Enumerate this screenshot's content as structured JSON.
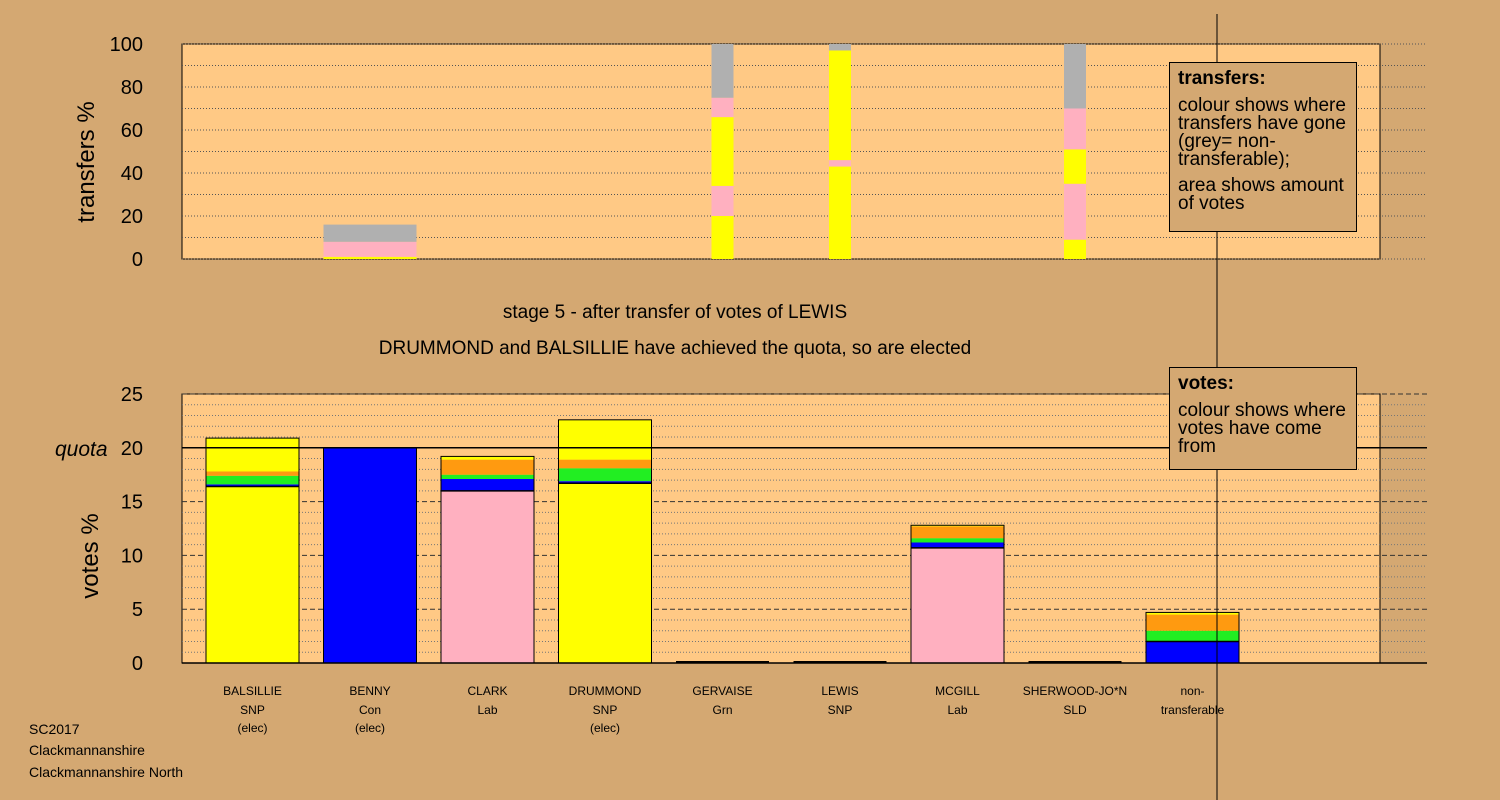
{
  "stage_text": "stage 5 - after transfer of votes of LEWIS",
  "elected_text": "DRUMMOND and BALSILLIE have achieved the quota, so are elected",
  "transfers_box": {
    "title": "transfers:",
    "line1": "colour shows where transfers have gone (grey= non-transferable);",
    "line2": "area shows amount of votes"
  },
  "votes_box": {
    "title": "votes:",
    "line1": "colour shows where votes have come from"
  },
  "footer": {
    "election": "SC2017",
    "council": "Clackmannanshire",
    "ward": "Clackmannanshire North"
  },
  "colors": {
    "background": "#d4a872",
    "plot": "#ffc985",
    "SNP": "#ffff00",
    "Con": "#0000ff",
    "Lab": "#ffb0c0",
    "Grn": "#22ee22",
    "SLD": "#ff9a10",
    "nontransferable": "#b0b0b0"
  },
  "chart_data": [
    {
      "type": "bar",
      "stacked": true,
      "ylabel": "transfers %",
      "ylim": [
        0,
        100
      ],
      "yticks": [
        0,
        20,
        40,
        60,
        80,
        100
      ],
      "candidates": [
        "BALSILLIE",
        "BENNY",
        "CLARK",
        "DRUMMOND",
        "GERVAISE",
        "LEWIS",
        "MCGILL",
        "SHERWOOD-JO*N",
        "non-transferable"
      ],
      "bars": [
        {
          "slot": 1,
          "segments": [
            {
              "party": "SNP",
              "value": 1
            },
            {
              "party": "Lab",
              "value": 7
            },
            {
              "party": "nontransferable",
              "value": 8
            }
          ]
        },
        {
          "slot": 4.5,
          "segments": [
            {
              "party": "SNP",
              "value": 20
            },
            {
              "party": "Lab",
              "value": 14
            },
            {
              "party": "SNP",
              "value": 32
            },
            {
              "party": "Lab",
              "value": 9
            },
            {
              "party": "nontransferable",
              "value": 25
            }
          ]
        },
        {
          "slot": 5.5,
          "segments": [
            {
              "party": "SNP",
              "value": 43
            },
            {
              "party": "Lab",
              "value": 3
            },
            {
              "party": "SNP",
              "value": 51
            },
            {
              "party": "nontransferable",
              "value": 3
            }
          ]
        },
        {
          "slot": 7.5,
          "segments": [
            {
              "party": "SNP",
              "value": 9
            },
            {
              "party": "Lab",
              "value": 26
            },
            {
              "party": "SNP",
              "value": 16
            },
            {
              "party": "Lab",
              "value": 19
            },
            {
              "party": "nontransferable",
              "value": 30
            }
          ]
        }
      ]
    },
    {
      "type": "bar",
      "stacked": true,
      "ylabel": "votes %",
      "ylim": [
        0,
        25
      ],
      "yticks": [
        0,
        5,
        10,
        15,
        20,
        25
      ],
      "quota": 20,
      "quota_label": "quota",
      "categories": [
        {
          "name": "BALSILLIE",
          "party": "SNP",
          "status": "(elec)",
          "segments": [
            {
              "party": "SNP",
              "value": 16.4
            },
            {
              "party": "Con",
              "value": 0.2
            },
            {
              "party": "Grn",
              "value": 0.8
            },
            {
              "party": "SLD",
              "value": 0.4
            },
            {
              "party": "SNP",
              "value": 3.1
            }
          ]
        },
        {
          "name": "BENNY",
          "party": "Con",
          "status": "(elec)",
          "segments": [
            {
              "party": "Con",
              "value": 20.0
            }
          ]
        },
        {
          "name": "CLARK",
          "party": "Lab",
          "status": "",
          "segments": [
            {
              "party": "Lab",
              "value": 16.0
            },
            {
              "party": "Con",
              "value": 1.1
            },
            {
              "party": "Grn",
              "value": 0.4
            },
            {
              "party": "SLD",
              "value": 1.4
            },
            {
              "party": "SNP",
              "value": 0.3
            }
          ]
        },
        {
          "name": "DRUMMOND",
          "party": "SNP",
          "status": "(elec)",
          "segments": [
            {
              "party": "SNP",
              "value": 16.7
            },
            {
              "party": "Con",
              "value": 0.2
            },
            {
              "party": "Grn",
              "value": 1.2
            },
            {
              "party": "SLD",
              "value": 0.8
            },
            {
              "party": "SNP",
              "value": 3.7
            }
          ]
        },
        {
          "name": "GERVAISE",
          "party": "Grn",
          "status": "",
          "segments": []
        },
        {
          "name": "LEWIS",
          "party": "SNP",
          "status": "",
          "segments": []
        },
        {
          "name": "MCGILL",
          "party": "Lab",
          "status": "",
          "segments": [
            {
              "party": "Lab",
              "value": 10.7
            },
            {
              "party": "Con",
              "value": 0.5
            },
            {
              "party": "Grn",
              "value": 0.4
            },
            {
              "party": "SLD",
              "value": 1.1
            },
            {
              "party": "SNP",
              "value": 0.1
            }
          ]
        },
        {
          "name": "SHERWOOD-JO*N",
          "party": "SLD",
          "status": "",
          "segments": []
        },
        {
          "name": "non-",
          "party": "transferable",
          "status": "",
          "segments": [
            {
              "party": "Con",
              "value": 2.0
            },
            {
              "party": "Grn",
              "value": 1.0
            },
            {
              "party": "SLD",
              "value": 1.5
            },
            {
              "party": "SNP",
              "value": 0.2
            }
          ]
        }
      ]
    }
  ]
}
